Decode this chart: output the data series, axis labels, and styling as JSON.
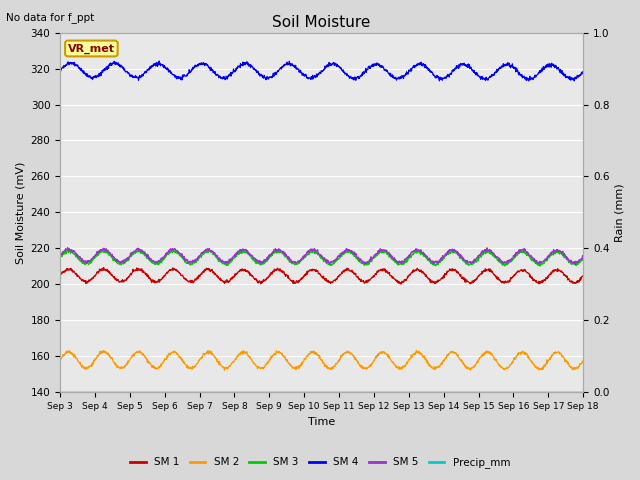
{
  "title": "Soil Moisture",
  "top_left_text": "No data for f_ppt",
  "legend_box_text": "VR_met",
  "xlabel": "Time",
  "ylabel_left": "Soil Moisture (mV)",
  "ylabel_right": "Rain (mm)",
  "ylim_left": [
    140,
    340
  ],
  "ylim_right": [
    0.0,
    1.0
  ],
  "yticks_left": [
    140,
    160,
    180,
    200,
    220,
    240,
    260,
    280,
    300,
    320,
    340
  ],
  "yticks_right": [
    0.0,
    0.2,
    0.4,
    0.6,
    0.8,
    1.0
  ],
  "n_points": 1500,
  "days": 15,
  "series": {
    "SM1": {
      "color": "#cc0000",
      "base": 205,
      "amplitude": 3.5,
      "trend": -0.04,
      "freq": 1.0
    },
    "SM2": {
      "color": "#ff9900",
      "base": 158,
      "amplitude": 4.5,
      "trend": -0.025,
      "freq": 1.0
    },
    "SM3": {
      "color": "#00cc00",
      "base": 215,
      "amplitude": 3.5,
      "trend": -0.03,
      "freq": 1.0
    },
    "SM4": {
      "color": "#0000ff",
      "base": 319,
      "amplitude": 4.0,
      "trend": -0.06,
      "freq": 0.8
    },
    "SM5": {
      "color": "#9933cc",
      "base": 216,
      "amplitude": 3.5,
      "trend": -0.032,
      "freq": 1.0
    },
    "Precip_mm": {
      "color": "#00cccc",
      "base": 140,
      "amplitude": 0,
      "trend": 0,
      "freq": 0
    }
  },
  "bg_color": "#e8e8e8",
  "grid_color": "#ffffff",
  "legend_labels": [
    "SM 1",
    "SM 2",
    "SM 3",
    "SM 4",
    "SM 5",
    "Precip_mm"
  ],
  "legend_colors": [
    "#cc0000",
    "#ff9900",
    "#00cc00",
    "#0000ff",
    "#9933cc",
    "#00cccc"
  ],
  "xtick_labels": [
    "Sep 3",
    "Sep 4",
    "Sep 5",
    "Sep 6",
    "Sep 7",
    "Sep 8",
    "Sep 9",
    "Sep 10",
    "Sep 11",
    "Sep 12",
    "Sep 13",
    "Sep 14",
    "Sep 15",
    "Sep 16",
    "Sep 17",
    "Sep 18"
  ]
}
